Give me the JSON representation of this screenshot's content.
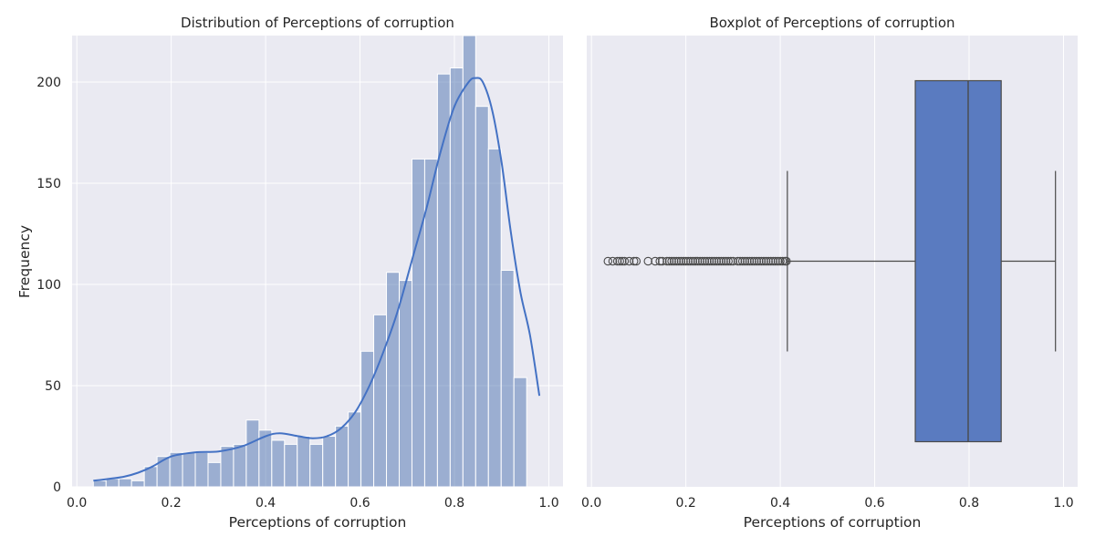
{
  "chart_data": [
    {
      "type": "histogram",
      "title": "Distribution of Perceptions of corruption",
      "xlabel": "Perceptions of corruption",
      "ylabel": "Frequency",
      "xlim": [
        -0.01,
        1.03
      ],
      "ylim": [
        0,
        223
      ],
      "xticks": [
        0.0,
        0.2,
        0.4,
        0.6,
        0.8,
        1.0
      ],
      "xtick_labels": [
        "0.0",
        "0.2",
        "0.4",
        "0.6",
        "0.8",
        "1.0"
      ],
      "yticks": [
        0,
        50,
        100,
        150,
        200
      ],
      "ytick_labels": [
        "0",
        "50",
        "100",
        "150",
        "200"
      ],
      "grid": true,
      "bar_color": "#4c72b0",
      "bin_start": 0.035,
      "bin_width": 0.027,
      "counts": [
        3,
        4,
        4,
        3,
        10,
        15,
        17,
        17,
        17,
        12,
        20,
        21,
        33,
        28,
        23,
        21,
        25,
        21,
        25,
        30,
        37,
        67,
        85,
        106,
        102,
        162,
        162,
        204,
        207,
        223,
        188,
        167,
        107,
        54
      ],
      "kde": {
        "color": "#4472c4",
        "x": [
          0.035,
          0.07,
          0.1,
          0.13,
          0.16,
          0.2,
          0.25,
          0.3,
          0.35,
          0.4,
          0.43,
          0.47,
          0.5,
          0.53,
          0.56,
          0.59,
          0.62,
          0.65,
          0.68,
          0.71,
          0.74,
          0.77,
          0.8,
          0.83,
          0.845,
          0.86,
          0.88,
          0.9,
          0.92,
          0.94,
          0.96,
          0.98
        ],
        "y": [
          3,
          4,
          5,
          7,
          10,
          15,
          17,
          17.5,
          20,
          25,
          26.5,
          25,
          24,
          25,
          29,
          37,
          50,
          67,
          87,
          112,
          137,
          165,
          188,
          200,
          202,
          200,
          186,
          160,
          125,
          96,
          75,
          45
        ]
      }
    },
    {
      "type": "boxplot",
      "title": "Boxplot of Perceptions of corruption",
      "xlabel": "Perceptions of corruption",
      "xlim": [
        -0.01,
        1.03
      ],
      "xticks": [
        0.0,
        0.2,
        0.4,
        0.6,
        0.8,
        1.0
      ],
      "xtick_labels": [
        "0.0",
        "0.2",
        "0.4",
        "0.6",
        "0.8",
        "1.0"
      ],
      "grid": true,
      "box_color": "#5a7bc0",
      "stats": {
        "whisker_low": 0.415,
        "q1": 0.686,
        "median": 0.798,
        "q3": 0.868,
        "whisker_high": 0.983
      },
      "outliers": [
        0.035,
        0.045,
        0.055,
        0.06,
        0.065,
        0.07,
        0.08,
        0.09,
        0.095,
        0.12,
        0.135,
        0.145,
        0.15,
        0.16,
        0.165,
        0.17,
        0.175,
        0.18,
        0.185,
        0.19,
        0.195,
        0.2,
        0.205,
        0.21,
        0.215,
        0.22,
        0.225,
        0.23,
        0.235,
        0.24,
        0.245,
        0.25,
        0.255,
        0.26,
        0.265,
        0.27,
        0.275,
        0.28,
        0.285,
        0.29,
        0.295,
        0.3,
        0.31,
        0.315,
        0.32,
        0.325,
        0.33,
        0.335,
        0.34,
        0.345,
        0.35,
        0.355,
        0.36,
        0.365,
        0.37,
        0.375,
        0.38,
        0.385,
        0.39,
        0.395,
        0.4,
        0.405,
        0.41,
        0.413
      ]
    }
  ]
}
